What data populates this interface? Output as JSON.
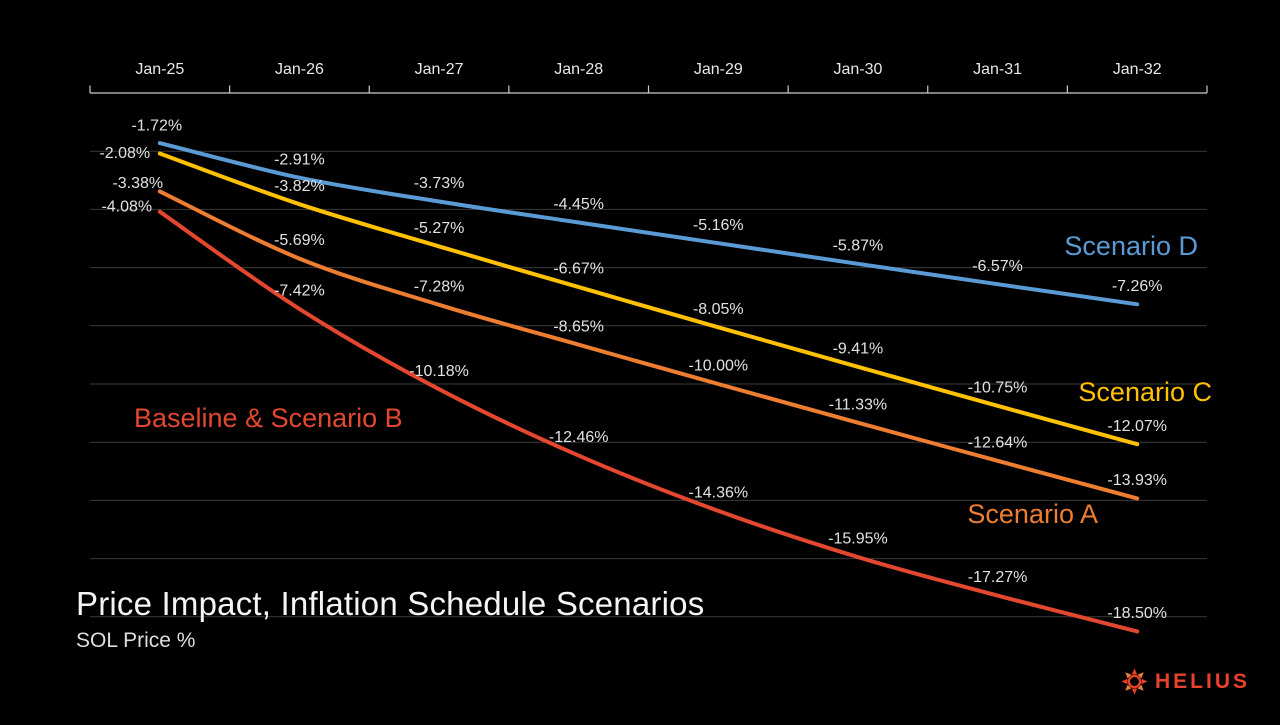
{
  "page": {
    "title": "Price Impact, Inflation Schedule Scenarios",
    "subtitle": "SOL Price %"
  },
  "footer": {
    "logo_text": "HELIUS"
  },
  "colors": {
    "background": "#000000",
    "axis_line": "#cccccc",
    "gridline": "#3a3a3a",
    "axis_label_text": "#e8e8e8",
    "value_label_text": "#e2e2e2",
    "title_text": "#f5f5f5",
    "subtitle_text": "#dedede",
    "logo_red": "#e8422c",
    "logo_orange": "#f08038"
  },
  "chart_data": {
    "type": "line",
    "title": "Price Impact, Inflation Schedule Scenarios",
    "ylabel": "SOL Price %",
    "xlabel": "",
    "categories": [
      "Jan-25",
      "Jan-26",
      "Jan-27",
      "Jan-28",
      "Jan-29",
      "Jan-30",
      "Jan-31",
      "Jan-32"
    ],
    "series": [
      {
        "name": "Scenario D",
        "color": "#5b9bd5",
        "values": [
          -1.72,
          -2.91,
          -3.73,
          -4.45,
          -5.16,
          -5.87,
          -6.57,
          -7.26
        ]
      },
      {
        "name": "Scenario C",
        "color": "#ffc103",
        "values": [
          -2.08,
          -3.82,
          -5.27,
          -6.67,
          -8.05,
          -9.41,
          -10.75,
          -12.07
        ]
      },
      {
        "name": "Scenario A",
        "color": "#ed7d31",
        "values": [
          -3.38,
          -5.69,
          -7.28,
          -8.65,
          -10.0,
          -11.33,
          -12.64,
          -13.93
        ]
      },
      {
        "name": "Baseline & Scenario B",
        "color": "#e4472f",
        "values": [
          -4.08,
          -7.42,
          -10.18,
          -12.46,
          -14.36,
          -15.95,
          -17.27,
          -18.5
        ]
      }
    ],
    "value_label_format": "-0.00%",
    "ylim": [
      -19.5,
      0
    ],
    "grid": "horizontal gridlines every 2%, no y tick labels",
    "x_axis_position": "top",
    "legend": "inline colored annotations next to lines",
    "point_labels_shown": true
  }
}
